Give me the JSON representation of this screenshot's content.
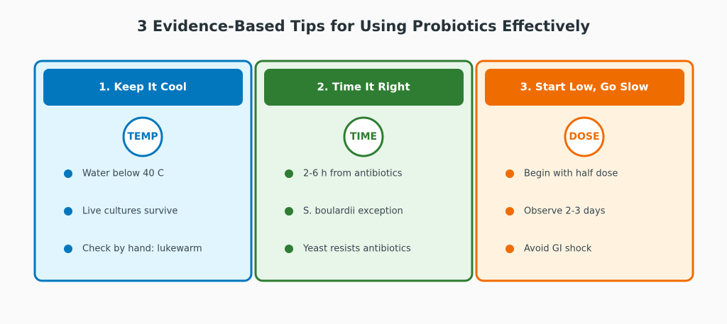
{
  "title": "3 Evidence-Based Tips for Using Probiotics Effectively",
  "cards": [
    {
      "heading": "1. Keep It Cool",
      "icon": "TEMP",
      "color": "#0277bd",
      "bg": "#e1f5fe",
      "items": [
        "Water below 40 C",
        "Live cultures survive",
        "Check by hand: lukewarm"
      ]
    },
    {
      "heading": "2. Time It Right",
      "icon": "TIME",
      "color": "#2e7d32",
      "bg": "#e8f5e9",
      "items": [
        "2-6 h from antibiotics",
        "S. boulardii exception",
        "Yeast resists antibiotics"
      ]
    },
    {
      "heading": "3. Start Low, Go Slow",
      "icon": "DOSE",
      "color": "#ef6c00",
      "bg": "#fff3e0",
      "items": [
        "Begin with half dose",
        "Observe 2-3 days",
        "Avoid GI shock"
      ]
    }
  ]
}
